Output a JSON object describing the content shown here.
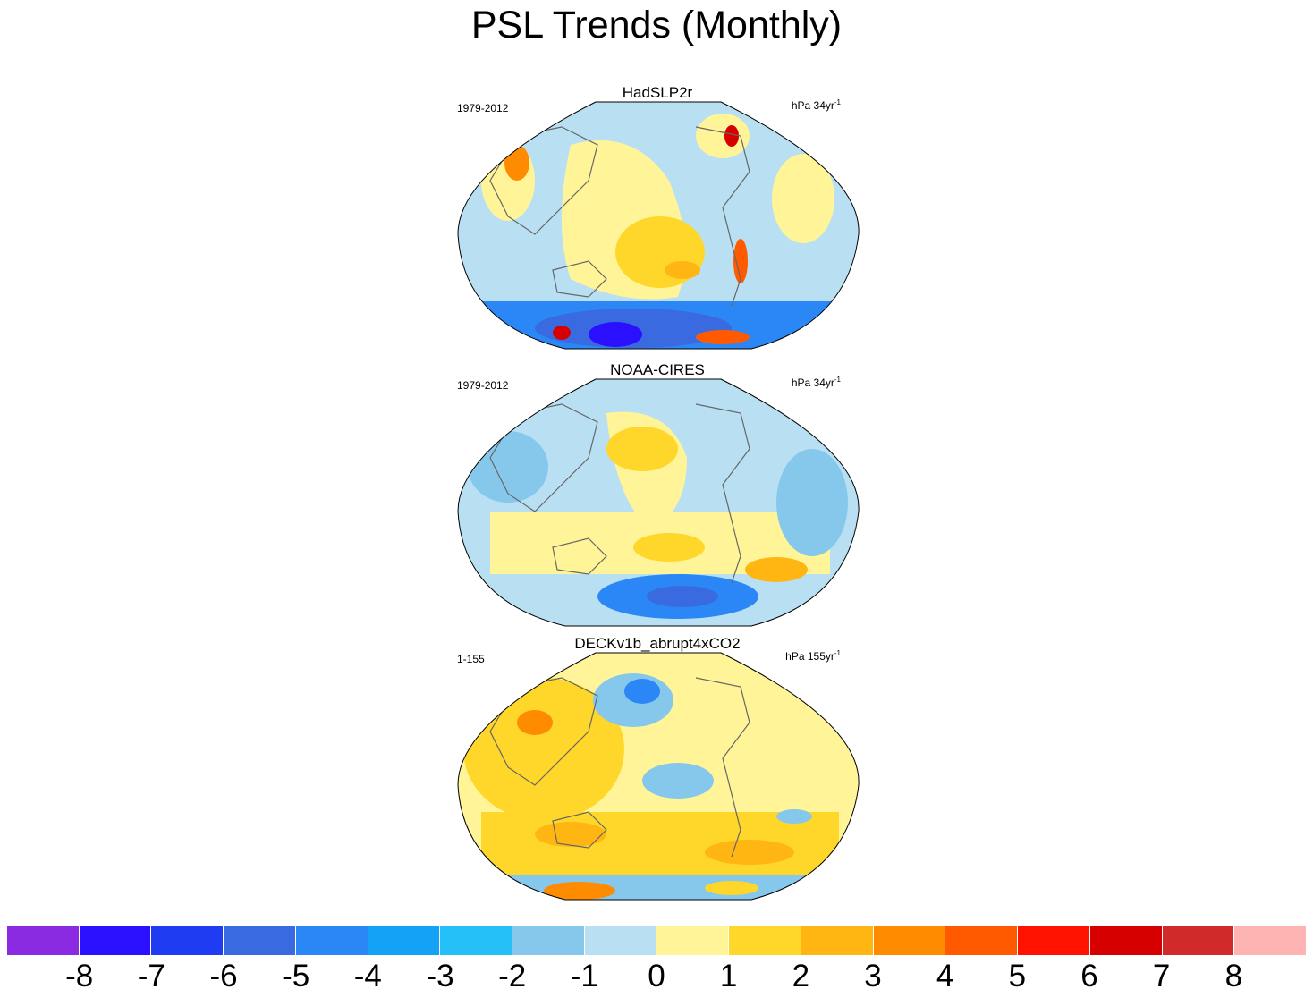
{
  "figure": {
    "title": "PSL Trends (Monthly)"
  },
  "panels": [
    {
      "name": "HadSLP2r",
      "period": "1979-2012",
      "units_text": "hPa 34yr",
      "units_exp": "-1"
    },
    {
      "name": "NOAA-CIRES",
      "period": "1979-2012",
      "units_text": "hPa 34yr",
      "units_exp": "-1"
    },
    {
      "name": "DECKv1b_abrupt4xCO2",
      "period": "1-155",
      "units_text": "hPa 155yr",
      "units_exp": "-1"
    }
  ],
  "colorbar": {
    "colors": [
      "#8a2be2",
      "#2a10ff",
      "#1f3cf2",
      "#3a6ae0",
      "#2a87f5",
      "#13a2f5",
      "#25c0f7",
      "#86c8ec",
      "#b8e0f2",
      "#fff598",
      "#ffd62a",
      "#ffb612",
      "#ff8c00",
      "#ff5a00",
      "#ff1200",
      "#d60000",
      "#d02a2a",
      "#ffb4b4"
    ],
    "ticks": [
      "-8",
      "-7",
      "-6",
      "-5",
      "-4",
      "-3",
      "-2",
      "-1",
      "0",
      "1",
      "2",
      "3",
      "4",
      "5",
      "6",
      "7",
      "8"
    ]
  }
}
